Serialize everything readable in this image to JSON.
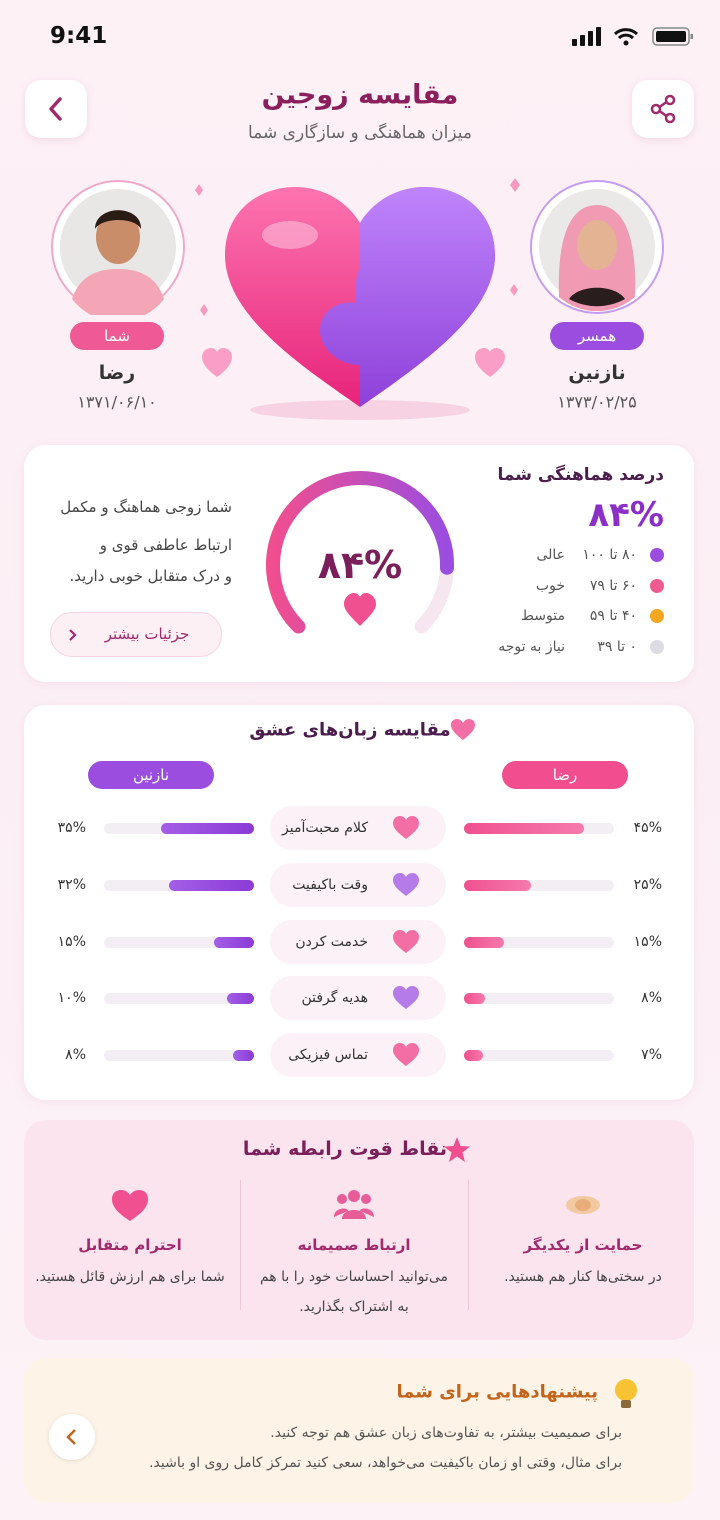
{
  "status_bar": {
    "time": "9:41"
  },
  "header": {
    "title": "مقایسه زوجین",
    "subtitle": "میزان هماهنگی و سازگاری شما"
  },
  "profiles": [
    {
      "badge": "شما",
      "name": "رضا",
      "birth_date": "۱۳۷۱/۰۶/۱۰"
    },
    {
      "badge": "همسر",
      "name": "نازنین",
      "birth_date": "۱۳۷۳/۰۲/۲۵"
    }
  ],
  "compatibility": {
    "title": "درصد هماهنگی شما",
    "value": 84,
    "label": "۸۴%",
    "legend": [
      {
        "range": "۸۰ تا ۱۰۰",
        "label": "عالی",
        "color": "#9b4de0"
      },
      {
        "range": "۶۰ تا ۷۹",
        "label": "خوب",
        "color": "#ef5a8f"
      },
      {
        "range": "۴۰ تا ۵۹",
        "label": "متوسط",
        "color": "#f5a623"
      },
      {
        "range": "۰ تا ۳۹",
        "label": "نیاز به توجه",
        "color": "#dcdce2"
      }
    ],
    "description": [
      "شما زوجی هماهنگ و مکمل",
      "ارتباط عاطفی قوی و",
      "و درک متقابل خوبی دارید."
    ],
    "details_button": "جزئیات بیشتر"
  },
  "love_languages": {
    "title": "مقایسه زبان‌های عشق",
    "rows": [
      {
        "label": "کلام محبت‌آمیز",
        "values": [
          45,
          35
        ],
        "value_labels": [
          "۴۵%",
          "۳۵%"
        ]
      },
      {
        "label": "وقت باکیفیت",
        "values": [
          25,
          32
        ],
        "value_labels": [
          "۲۵%",
          "۳۲%"
        ]
      },
      {
        "label": "خدمت کردن",
        "values": [
          15,
          15
        ],
        "value_labels": [
          "۱۵%",
          "۱۵%"
        ]
      },
      {
        "label": "هدیه گرفتن",
        "values": [
          8,
          10
        ],
        "value_labels": [
          "۸%",
          "۱۰%"
        ]
      },
      {
        "label": "تماس فیزیکی",
        "values": [
          7,
          8
        ],
        "value_labels": [
          "۷%",
          "۸%"
        ]
      }
    ]
  },
  "strengths": {
    "title": "نقاط قوت رابطه شما",
    "items": [
      {
        "title": "حمایت از یکدیگر",
        "text": "در سختی‌ها کنار هم هستید."
      },
      {
        "title": "ارتباط صمیمانه",
        "text": "می‌توانید احساسات خود را با هم به اشتراک بگذارید."
      },
      {
        "title": "احترام متقابل",
        "text": "شما برای هم ارزش قائل هستید."
      }
    ]
  },
  "suggestions": {
    "title": "پیشنهادهایی برای شما",
    "lines": [
      "برای صمیمیت بیشتر، به تفاوت‌های زبان عشق هم توجه کنید.",
      "برای مثال، وقتی او زمان باکیفیت می‌خواهد، سعی کنید تمرکز کامل روی او باشید."
    ]
  }
}
